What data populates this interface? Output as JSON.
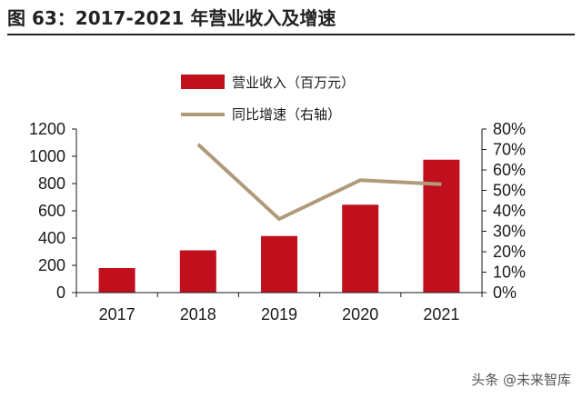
{
  "figure": {
    "title": "图 63：2017-2021 年营业收入及增速",
    "watermark": "头条 @未来智库"
  },
  "colors": {
    "bar": "#c0101e",
    "line": "#b09a7a",
    "axis": "#1a1a1a"
  },
  "chart_data": {
    "type": "bar",
    "categories": [
      "2017",
      "2018",
      "2019",
      "2020",
      "2021"
    ],
    "series": [
      {
        "name": "营业收入（百万元）",
        "type": "bar",
        "axis": "left",
        "values": [
          180,
          310,
          415,
          645,
          975
        ]
      },
      {
        "name": "同比增速（右轴）",
        "type": "line",
        "axis": "right",
        "values": [
          null,
          72.5,
          36,
          55,
          53
        ]
      }
    ],
    "ylim_left": [
      0,
      1200
    ],
    "yticks_left": [
      "0",
      "200",
      "400",
      "600",
      "800",
      "1000",
      "1200"
    ],
    "ylim_right": [
      0,
      80
    ],
    "yticks_right": [
      "0%",
      "10%",
      "20%",
      "30%",
      "40%",
      "50%",
      "60%",
      "70%",
      "80%"
    ],
    "grid": false,
    "legend_position": "top-center"
  }
}
